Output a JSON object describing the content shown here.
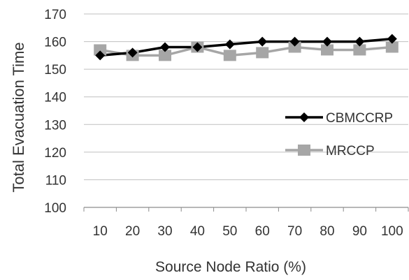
{
  "chart_data": {
    "type": "line",
    "title": "",
    "xlabel": "Source Node Ratio  (%)",
    "ylabel": "Total Evacuation Time",
    "categories": [
      "10",
      "20",
      "30",
      "40",
      "50",
      "60",
      "70",
      "80",
      "90",
      "100"
    ],
    "ylim": [
      100,
      170
    ],
    "yticks": [
      100,
      110,
      120,
      130,
      140,
      150,
      160,
      170
    ],
    "grid": true,
    "legend_position": "right",
    "series": [
      {
        "name": "CBMCCRP",
        "color": "#000000",
        "marker": "diamond",
        "values": [
          155,
          156,
          158,
          158,
          159,
          160,
          160,
          160,
          160,
          161
        ]
      },
      {
        "name": "MRCCP",
        "color": "#a6a6a6",
        "marker": "square",
        "values": [
          157,
          155,
          155,
          158,
          155,
          156,
          158,
          157,
          157,
          158
        ]
      }
    ]
  }
}
